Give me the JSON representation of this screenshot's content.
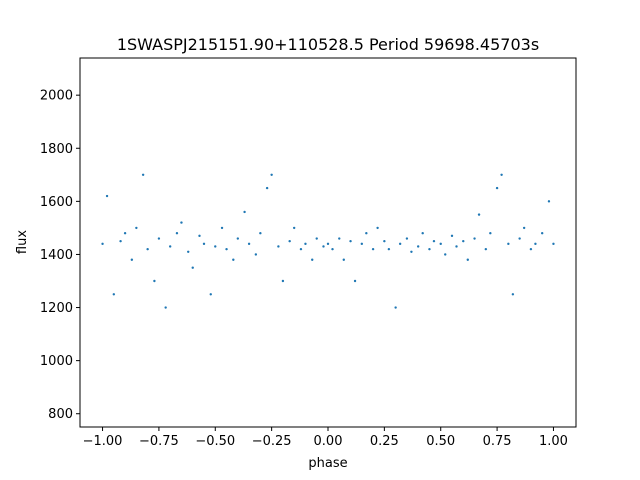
{
  "chart_data": {
    "type": "scatter",
    "title": "1SWASPJ215151.90+110528.5 Period 59698.45703s",
    "xlabel": "phase",
    "ylabel": "flux",
    "xlim": [
      -1.1,
      1.1
    ],
    "ylim": [
      750,
      2140
    ],
    "x_ticks": [
      -1.0,
      -0.75,
      -0.5,
      -0.25,
      0.0,
      0.25,
      0.5,
      0.75,
      1.0
    ],
    "x_tick_labels": [
      "−1.00",
      "−0.75",
      "−0.50",
      "−0.25",
      "0.00",
      "0.25",
      "0.50",
      "0.75",
      "1.00"
    ],
    "y_ticks": [
      800,
      1000,
      1200,
      1400,
      1600,
      1800,
      2000
    ],
    "y_tick_labels": [
      "800",
      "1000",
      "1200",
      "1400",
      "1600",
      "1800",
      "2000"
    ],
    "grid": false,
    "legend": "none",
    "marker_color": "#1f77b4",
    "series": [
      {
        "points": [
          [
            -1.0,
            1440
          ],
          [
            -0.98,
            1620
          ],
          [
            -0.95,
            1250
          ],
          [
            -0.92,
            1450
          ],
          [
            -0.9,
            1480
          ],
          [
            -0.87,
            1380
          ],
          [
            -0.85,
            1500
          ],
          [
            -0.82,
            1700
          ],
          [
            -0.8,
            1420
          ],
          [
            -0.77,
            1300
          ],
          [
            -0.75,
            1460
          ],
          [
            -0.72,
            1200
          ],
          [
            -0.7,
            1430
          ],
          [
            -0.67,
            1480
          ],
          [
            -0.65,
            1520
          ],
          [
            -0.62,
            1410
          ],
          [
            -0.6,
            1350
          ],
          [
            -0.57,
            1470
          ],
          [
            -0.55,
            1440
          ],
          [
            -0.52,
            1250
          ],
          [
            -0.5,
            1430
          ],
          [
            -0.47,
            1500
          ],
          [
            -0.45,
            1420
          ],
          [
            -0.42,
            1380
          ],
          [
            -0.4,
            1460
          ],
          [
            -0.37,
            1560
          ],
          [
            -0.35,
            1440
          ],
          [
            -0.32,
            1400
          ],
          [
            -0.3,
            1480
          ],
          [
            -0.27,
            1650
          ],
          [
            -0.25,
            1700
          ],
          [
            -0.22,
            1430
          ],
          [
            -0.2,
            1300
          ],
          [
            -0.17,
            1450
          ],
          [
            -0.15,
            1500
          ],
          [
            -0.12,
            1420
          ],
          [
            -0.1,
            1440
          ],
          [
            -0.07,
            1380
          ],
          [
            -0.05,
            1460
          ],
          [
            -0.02,
            1430
          ],
          [
            0.0,
            1440
          ],
          [
            0.02,
            1420
          ],
          [
            0.05,
            1460
          ],
          [
            0.07,
            1380
          ],
          [
            0.1,
            1450
          ],
          [
            0.12,
            1300
          ],
          [
            0.15,
            1440
          ],
          [
            0.17,
            1480
          ],
          [
            0.2,
            1420
          ],
          [
            0.22,
            1500
          ],
          [
            0.25,
            1450
          ],
          [
            0.27,
            1420
          ],
          [
            0.3,
            1200
          ],
          [
            0.32,
            1440
          ],
          [
            0.35,
            1460
          ],
          [
            0.37,
            1410
          ],
          [
            0.4,
            1430
          ],
          [
            0.42,
            1480
          ],
          [
            0.45,
            1420
          ],
          [
            0.47,
            1450
          ],
          [
            0.5,
            1440
          ],
          [
            0.52,
            1400
          ],
          [
            0.55,
            1470
          ],
          [
            0.57,
            1430
          ],
          [
            0.6,
            1450
          ],
          [
            0.62,
            1380
          ],
          [
            0.65,
            1460
          ],
          [
            0.67,
            1550
          ],
          [
            0.7,
            1420
          ],
          [
            0.72,
            1480
          ],
          [
            0.75,
            1650
          ],
          [
            0.77,
            1700
          ],
          [
            0.8,
            1440
          ],
          [
            0.82,
            1250
          ],
          [
            0.85,
            1460
          ],
          [
            0.87,
            1500
          ],
          [
            0.9,
            1420
          ],
          [
            0.92,
            1440
          ],
          [
            0.95,
            1480
          ],
          [
            0.98,
            1600
          ],
          [
            1.0,
            1440
          ]
        ]
      }
    ]
  }
}
